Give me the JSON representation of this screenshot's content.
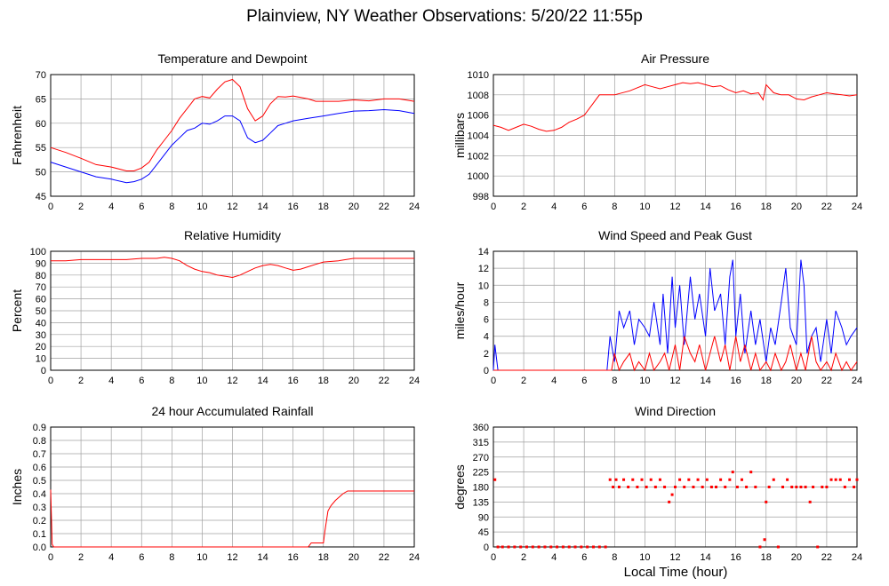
{
  "page": {
    "title": "Plainview, NY Weather Observations: 5/20/22 11:55p",
    "xlabel": "Local Time (hour)"
  },
  "colors": {
    "red": "#ff0000",
    "blue": "#0000ff",
    "grid": "#a0a0a0"
  },
  "chart_data": [
    {
      "type": "line",
      "title": "Temperature and Dewpoint",
      "ylabel": "Fahrenheit",
      "xlim": [
        0,
        24
      ],
      "ylim": [
        45,
        70
      ],
      "xticks": [
        0,
        2,
        4,
        6,
        8,
        10,
        12,
        14,
        16,
        18,
        20,
        22,
        24
      ],
      "yticks": [
        45,
        50,
        55,
        60,
        65,
        70
      ],
      "grid": true,
      "series": [
        {
          "color": "red",
          "x": [
            0,
            1,
            2,
            3,
            4,
            5,
            5.5,
            6,
            6.5,
            7,
            7.5,
            8,
            8.5,
            9,
            9.5,
            10,
            10.5,
            11,
            11.5,
            12,
            12.5,
            13,
            13.5,
            14,
            14.5,
            15,
            15.5,
            16,
            16.5,
            17,
            17.5,
            18,
            19,
            20,
            21,
            22,
            23,
            24
          ],
          "y": [
            55,
            54,
            52.8,
            51.5,
            51,
            50.2,
            50.2,
            50.8,
            52,
            54.5,
            56.5,
            58.5,
            61,
            63,
            65,
            65.5,
            65.2,
            67,
            68.5,
            69,
            67.5,
            63,
            60.5,
            61.5,
            64,
            65.5,
            65.4,
            65.6,
            65.3,
            65,
            64.5,
            64.5,
            64.5,
            64.8,
            64.6,
            65,
            65,
            64.5
          ]
        },
        {
          "color": "blue",
          "x": [
            0,
            1,
            2,
            3,
            4,
            5,
            5.5,
            6,
            6.5,
            7,
            7.5,
            8,
            8.5,
            9,
            9.5,
            10,
            10.5,
            11,
            11.5,
            12,
            12.5,
            13,
            13.5,
            14,
            14.5,
            15,
            15.5,
            16,
            17,
            18,
            19,
            20,
            21,
            22,
            23,
            24
          ],
          "y": [
            52,
            51,
            50,
            49,
            48.5,
            47.8,
            48,
            48.5,
            49.5,
            51.5,
            53.5,
            55.5,
            57,
            58.5,
            59,
            60,
            59.8,
            60.5,
            61.5,
            61.5,
            60.5,
            57,
            56,
            56.5,
            58,
            59.5,
            60,
            60.5,
            61,
            61.5,
            62,
            62.5,
            62.6,
            62.8,
            62.6,
            62
          ]
        }
      ]
    },
    {
      "type": "line",
      "title": "Air Pressure",
      "ylabel": "millibars",
      "xlim": [
        0,
        24
      ],
      "ylim": [
        998,
        1010
      ],
      "xticks": [
        0,
        2,
        4,
        6,
        8,
        10,
        12,
        14,
        16,
        18,
        20,
        22,
        24
      ],
      "yticks": [
        998,
        1000,
        1002,
        1004,
        1006,
        1008,
        1010
      ],
      "grid": true,
      "series": [
        {
          "color": "red",
          "x": [
            0,
            0.5,
            1,
            1.5,
            2,
            2.5,
            3,
            3.5,
            4,
            4.5,
            5,
            5.5,
            6,
            6.5,
            7,
            8,
            9,
            10,
            10.5,
            11,
            11.5,
            12,
            12.5,
            13,
            13.5,
            14,
            14.5,
            15,
            15.5,
            16,
            16.5,
            17,
            17.5,
            17.8,
            18,
            18.5,
            19,
            19.5,
            20,
            20.5,
            21,
            21.5,
            22,
            22.5,
            23,
            23.5,
            24
          ],
          "y": [
            1005,
            1004.8,
            1004.5,
            1004.8,
            1005.1,
            1004.9,
            1004.6,
            1004.4,
            1004.5,
            1004.8,
            1005.3,
            1005.6,
            1006,
            1007,
            1008,
            1008,
            1008.4,
            1009,
            1008.8,
            1008.6,
            1008.8,
            1009,
            1009.2,
            1009.1,
            1009.2,
            1009,
            1008.8,
            1008.9,
            1008.5,
            1008.2,
            1008.4,
            1008.1,
            1008.2,
            1007.5,
            1009,
            1008.2,
            1008,
            1008,
            1007.6,
            1007.5,
            1007.8,
            1008,
            1008.2,
            1008.1,
            1008,
            1007.9,
            1008
          ]
        }
      ]
    },
    {
      "type": "line",
      "title": "Relative Humidity",
      "ylabel": "Percent",
      "xlim": [
        0,
        24
      ],
      "ylim": [
        0,
        100
      ],
      "xticks": [
        0,
        2,
        4,
        6,
        8,
        10,
        12,
        14,
        16,
        18,
        20,
        22,
        24
      ],
      "yticks": [
        0,
        10,
        20,
        30,
        40,
        50,
        60,
        70,
        80,
        90,
        100
      ],
      "grid": true,
      "series": [
        {
          "color": "red",
          "x": [
            0,
            1,
            2,
            3,
            4,
            5,
            6,
            7,
            7.5,
            8,
            8.5,
            9,
            9.5,
            10,
            10.5,
            11,
            11.5,
            12,
            12.5,
            13,
            13.5,
            14,
            14.5,
            15,
            15.5,
            16,
            16.5,
            17,
            17.5,
            18,
            19,
            20,
            21,
            22,
            23,
            24
          ],
          "y": [
            92,
            92,
            93,
            93,
            93,
            93,
            94,
            94,
            95,
            94,
            92,
            88,
            85,
            83,
            82,
            80,
            79,
            78,
            80,
            83,
            86,
            88,
            89,
            88,
            86,
            84,
            85,
            87,
            89,
            91,
            92,
            94,
            94,
            94,
            94,
            94
          ]
        }
      ]
    },
    {
      "type": "line",
      "title": "Wind Speed and Peak Gust",
      "ylabel": "miles/hour",
      "xlim": [
        0,
        24
      ],
      "ylim": [
        0,
        14
      ],
      "xticks": [
        0,
        2,
        4,
        6,
        8,
        10,
        12,
        14,
        16,
        18,
        20,
        22,
        24
      ],
      "yticks": [
        0,
        2,
        4,
        6,
        8,
        10,
        12,
        14
      ],
      "grid": true,
      "series": [
        {
          "color": "blue",
          "x": [
            0,
            0.1,
            0.3,
            0.5,
            7.5,
            7.7,
            8,
            8.3,
            8.6,
            9,
            9.3,
            9.6,
            10,
            10.3,
            10.6,
            11,
            11.2,
            11.5,
            11.8,
            12,
            12.3,
            12.6,
            13,
            13.3,
            13.6,
            14,
            14.3,
            14.6,
            15,
            15.3,
            15.6,
            15.8,
            16,
            16.3,
            16.6,
            17,
            17.3,
            17.6,
            18,
            18.3,
            18.6,
            19,
            19.3,
            19.6,
            20,
            20.3,
            20.5,
            20.7,
            21,
            21.3,
            21.6,
            22,
            22.3,
            22.6,
            23,
            23.3,
            23.6,
            24
          ],
          "y": [
            0,
            3,
            0,
            0,
            0,
            4,
            1,
            7,
            5,
            7,
            3,
            6,
            5,
            4,
            8,
            3,
            9,
            2,
            11,
            5,
            10,
            3,
            11,
            6,
            9,
            4,
            12,
            7,
            9,
            3,
            11,
            13,
            4,
            9,
            2,
            7,
            3,
            6,
            1,
            5,
            3,
            8,
            12,
            5,
            3,
            13,
            10,
            2,
            4,
            5,
            1,
            6,
            2,
            7,
            5,
            3,
            4,
            5
          ]
        },
        {
          "color": "red",
          "x": [
            0,
            7.8,
            8,
            8.3,
            8.6,
            9,
            9.3,
            9.6,
            10,
            10.3,
            10.6,
            11,
            11.3,
            11.6,
            12,
            12.3,
            12.6,
            13,
            13.3,
            13.6,
            14,
            14.3,
            14.6,
            15,
            15.3,
            15.6,
            16,
            16.3,
            16.6,
            17,
            17.3,
            17.6,
            18,
            18.3,
            18.6,
            19,
            19.3,
            19.6,
            20,
            20.3,
            20.6,
            21,
            21.3,
            21.6,
            22,
            22.3,
            22.6,
            23,
            23.3,
            23.6,
            24
          ],
          "y": [
            0,
            0,
            2,
            0,
            1,
            2,
            0,
            1,
            0,
            2,
            0,
            1,
            2,
            0,
            3,
            0,
            4,
            2,
            1,
            3,
            0,
            2,
            4,
            1,
            3,
            0,
            4,
            1,
            3,
            0,
            2,
            0,
            1,
            0,
            2,
            0,
            1,
            3,
            0,
            2,
            0,
            4,
            1,
            0,
            1,
            0,
            2,
            0,
            1,
            0,
            1
          ]
        }
      ]
    },
    {
      "type": "line",
      "title": "24 hour Accumulated Rainfall",
      "ylabel": "Inches",
      "xlim": [
        0,
        24
      ],
      "ylim": [
        0,
        0.9
      ],
      "xticks": [
        0,
        2,
        4,
        6,
        8,
        10,
        12,
        14,
        16,
        18,
        20,
        22,
        24
      ],
      "yticks": [
        0.0,
        0.1,
        0.2,
        0.3,
        0.4,
        0.5,
        0.6,
        0.7,
        0.8,
        0.9
      ],
      "grid": true,
      "series": [
        {
          "color": "red",
          "x": [
            0,
            0.1,
            0.2,
            17,
            17.2,
            18,
            18.1,
            18.3,
            18.5,
            18.8,
            19,
            19.3,
            19.6,
            20,
            21,
            22,
            23,
            24
          ],
          "y": [
            0.43,
            0.02,
            0,
            0,
            0.03,
            0.03,
            0.12,
            0.27,
            0.31,
            0.35,
            0.37,
            0.4,
            0.42,
            0.42,
            0.42,
            0.42,
            0.42,
            0.42
          ]
        }
      ]
    },
    {
      "type": "scatter",
      "title": "Wind Direction",
      "ylabel": "degrees",
      "xlim": [
        0,
        24
      ],
      "ylim": [
        0,
        360
      ],
      "xticks": [
        0,
        2,
        4,
        6,
        8,
        10,
        12,
        14,
        16,
        18,
        20,
        22,
        24
      ],
      "yticks": [
        0,
        45,
        90,
        135,
        180,
        225,
        270,
        315,
        360
      ],
      "grid": true,
      "series": [
        {
          "color": "red",
          "x": [
            0.1,
            0.3,
            0.6,
            1,
            1.4,
            1.8,
            2.2,
            2.6,
            3,
            3.4,
            3.8,
            4.2,
            4.6,
            5,
            5.4,
            5.8,
            6.2,
            6.6,
            7,
            7.4,
            7.7,
            7.9,
            8.1,
            8.3,
            8.6,
            8.9,
            9.2,
            9.5,
            9.8,
            10.1,
            10.4,
            10.7,
            11,
            11.3,
            11.6,
            11.8,
            12,
            12.3,
            12.6,
            12.9,
            13.2,
            13.5,
            13.8,
            14.1,
            14.4,
            14.7,
            15,
            15.3,
            15.6,
            15.8,
            16.1,
            16.4,
            16.7,
            17,
            17.3,
            17.6,
            17.9,
            18,
            18.2,
            18.5,
            18.8,
            19.1,
            19.4,
            19.7,
            20,
            20.3,
            20.6,
            20.9,
            21.1,
            21.4,
            21.7,
            22,
            22.3,
            22.6,
            22.9,
            23.2,
            23.5,
            23.8,
            24
          ],
          "y": [
            202,
            0,
            0,
            0,
            0,
            0,
            0,
            0,
            0,
            0,
            0,
            0,
            0,
            0,
            0,
            0,
            0,
            0,
            0,
            0,
            202,
            180,
            202,
            180,
            202,
            180,
            202,
            180,
            202,
            180,
            202,
            180,
            202,
            180,
            135,
            157,
            180,
            202,
            180,
            202,
            180,
            202,
            180,
            202,
            180,
            180,
            202,
            180,
            202,
            225,
            180,
            202,
            180,
            225,
            180,
            0,
            22,
            135,
            180,
            202,
            0,
            180,
            202,
            180,
            180,
            180,
            180,
            135,
            180,
            0,
            180,
            180,
            202,
            202,
            202,
            180,
            202,
            180,
            202
          ]
        }
      ]
    }
  ]
}
